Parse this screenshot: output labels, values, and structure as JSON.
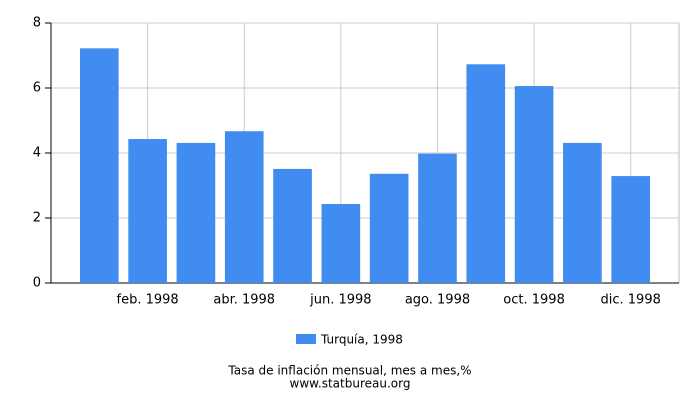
{
  "chart_data": {
    "type": "bar",
    "title": "Tasa de inflación mensual, mes a mes,%",
    "subtitle": "www.statbureau.org",
    "categories": [
      null,
      "feb. 1998",
      null,
      "abr. 1998",
      null,
      "jun. 1998",
      null,
      "ago. 1998",
      null,
      "oct. 1998",
      null,
      "dic. 1998"
    ],
    "series": [
      {
        "name": "Turquía, 1998",
        "color": "#418cf0",
        "values": [
          7.22,
          4.43,
          4.31,
          4.67,
          3.51,
          2.43,
          3.36,
          3.98,
          6.73,
          6.06,
          4.31,
          3.29
        ]
      }
    ],
    "ylim": [
      0,
      8
    ],
    "yticks": [
      0,
      2,
      4,
      6,
      8
    ],
    "grid": true
  }
}
